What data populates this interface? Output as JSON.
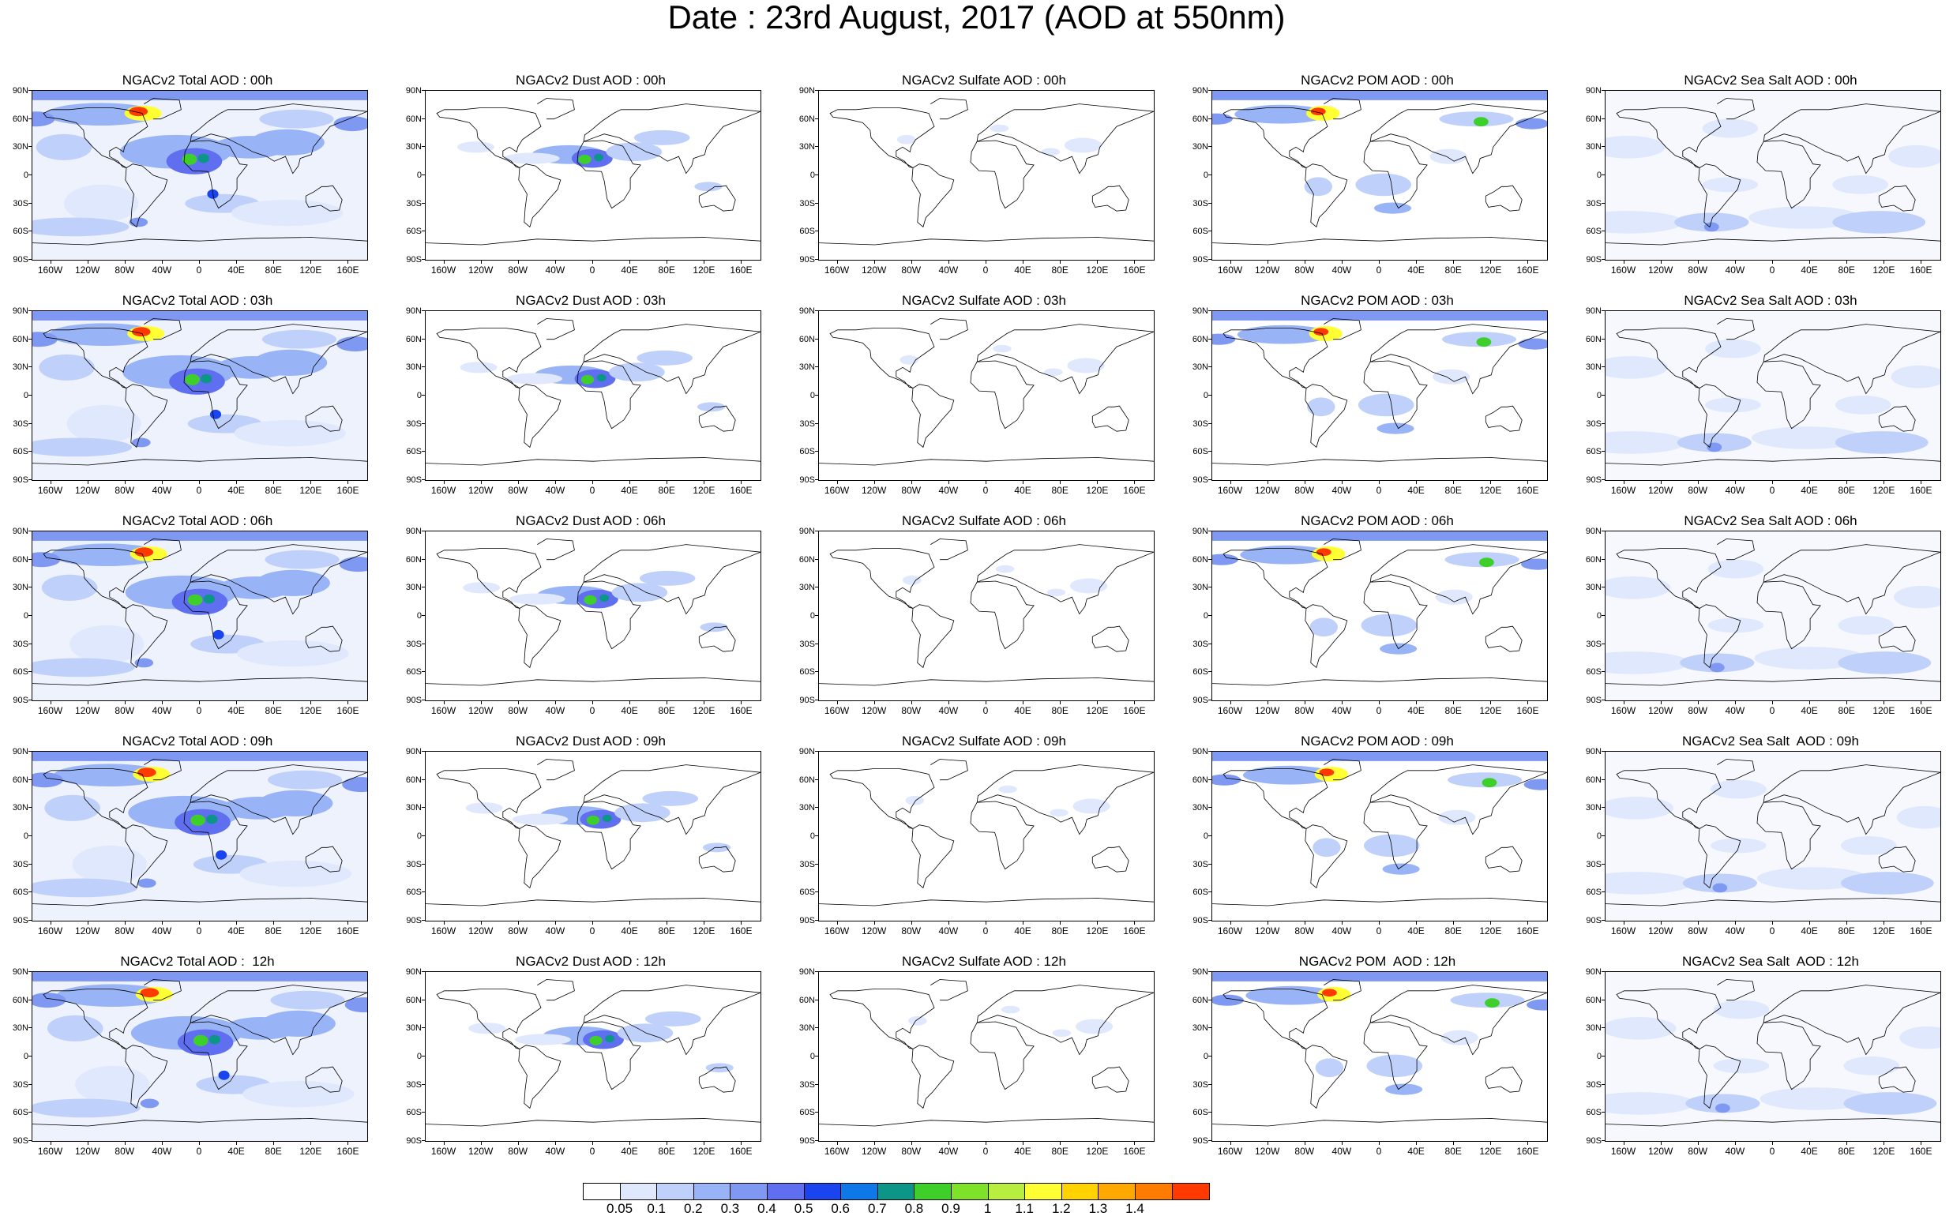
{
  "title": "Date : 23rd August, 2017 (AOD at 550nm)",
  "panel_titles": [
    [
      "NGACv2 Total AOD : 00h",
      "NGACv2 Dust AOD : 00h",
      "NGACv2 Sulfate AOD : 00h",
      "NGACv2 POM AOD : 00h",
      "NGACv2 Sea Salt AOD : 00h"
    ],
    [
      "NGACv2 Total AOD : 03h",
      "NGACv2 Dust AOD : 03h",
      "NGACv2 Sulfate AOD : 03h",
      "NGACv2 POM AOD : 03h",
      "NGACv2 Sea Salt AOD : 03h"
    ],
    [
      "NGACv2 Total AOD : 06h",
      "NGACv2 Dust AOD : 06h",
      "NGACv2 Sulfate AOD : 06h",
      "NGACv2 POM AOD : 06h",
      "NGACv2 Sea Salt AOD : 06h"
    ],
    [
      "NGACv2 Total AOD : 09h",
      "NGACv2 Dust AOD : 09h",
      "NGACv2 Sulfate AOD : 09h",
      "NGACv2 POM AOD : 09h",
      "NGACv2 Sea Salt  AOD : 09h"
    ],
    [
      "NGACv2 Total AOD :  12h",
      "NGACv2 Dust AOD : 12h",
      "NGACv2 Sulfate AOD : 12h",
      "NGACv2 POM  AOD : 12h",
      "NGACv2 Sea Salt  AOD : 12h"
    ]
  ],
  "lat_labels": [
    "90N",
    "60N",
    "30N",
    "0",
    "30S",
    "60S",
    "90S"
  ],
  "lon_labels": [
    "160W",
    "120W",
    "80W",
    "40W",
    "0",
    "40E",
    "80E",
    "120E",
    "160E"
  ],
  "colorbar": {
    "colors": [
      "#ffffff",
      "#dfe8fc",
      "#bfd0fa",
      "#99b4f6",
      "#7f99f2",
      "#5f6ff0",
      "#1a45ee",
      "#0f78e8",
      "#0b9688",
      "#3fcf2b",
      "#7ee12a",
      "#b7ee3f",
      "#ffff33",
      "#ffd200",
      "#ffa800",
      "#ff7c00",
      "#ff3900"
    ],
    "labels": [
      "0.05",
      "0.1",
      "0.2",
      "0.3",
      "0.4",
      "0.5",
      "0.6",
      "0.7",
      "0.8",
      "0.9",
      "1",
      "1.1",
      "1.2",
      "1.3",
      "1.4"
    ]
  }
}
